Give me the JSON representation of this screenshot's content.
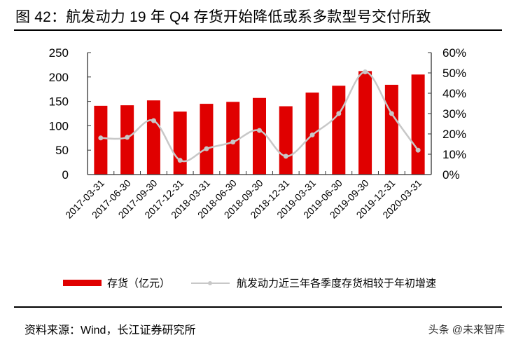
{
  "title": "图 42：航发动力 19 年 Q4 存货开始降低或系多款型号交付所致",
  "legend": {
    "bar_label": "存货（亿元）",
    "line_label": "航发动力近三年各季度存货相较于年初增速"
  },
  "source": "资料来源：Wind，长江证券研究所",
  "watermark": "头条 @未来智库",
  "colors": {
    "bar": "#e00000",
    "line": "#c8c8c8",
    "axis": "#333333"
  },
  "chart_data": {
    "type": "bar",
    "title": "航发动力 19 年 Q4 存货开始降低或系多款型号交付所致",
    "categories": [
      "2017-03-31",
      "2017-06-30",
      "2017-09-30",
      "2017-12-31",
      "2018-03-31",
      "2018-06-30",
      "2018-09-30",
      "2018-12-31",
      "2019-03-31",
      "2019-06-30",
      "2019-09-30",
      "2019-12-31",
      "2020-03-31"
    ],
    "series": [
      {
        "name": "存货（亿元）",
        "type": "bar",
        "axis": "left",
        "values": [
          141,
          142,
          152,
          129,
          145,
          149,
          157,
          140,
          168,
          182,
          212,
          184,
          205
        ]
      },
      {
        "name": "航发动力近三年各季度存货相较于年初增速",
        "type": "line",
        "axis": "right",
        "unit": "%",
        "values": [
          18,
          18.3,
          26.5,
          7,
          12.7,
          16,
          21.7,
          9,
          19.5,
          30,
          50.5,
          30,
          12
        ]
      }
    ],
    "xlabel": "",
    "ylabel": "",
    "ylim": [
      0,
      250
    ],
    "y_ticks": [
      "0",
      "50",
      "100",
      "150",
      "200",
      "250"
    ],
    "y2lim": [
      0,
      60
    ],
    "y2_ticks": [
      "0%",
      "10%",
      "20%",
      "30%",
      "40%",
      "50%",
      "60%"
    ],
    "grid": false,
    "legend_position": "bottom"
  }
}
